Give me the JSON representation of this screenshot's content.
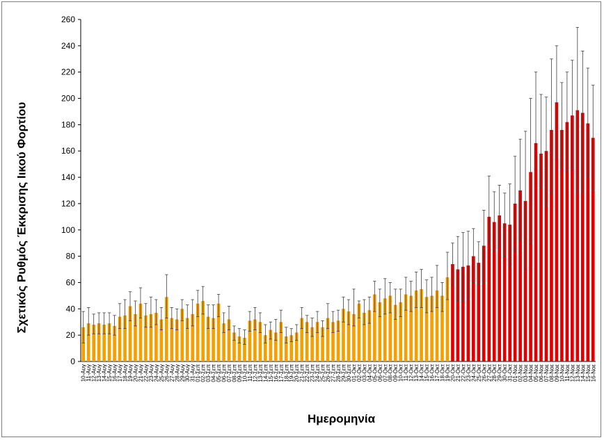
{
  "chart_data": {
    "type": "bar",
    "title": "",
    "xlabel": "Ημερομηνία",
    "ylabel": "Σχετικός Ρυθμός Έκκρισης Ιικού Φορτίου",
    "ylim": [
      0,
      260
    ],
    "yticks": [
      0,
      20,
      40,
      60,
      80,
      100,
      120,
      140,
      160,
      180,
      200,
      220,
      240,
      260
    ],
    "grid": false,
    "colors": {
      "before": "#f5a000",
      "after": "#e00000",
      "error": "#404040"
    },
    "categories": [
      "10-Αυγ",
      "11-Αυγ",
      "12-Αυγ",
      "13-Αυγ",
      "14-Αυγ",
      "15-Αυγ",
      "16-Αυγ",
      "17-Αυγ",
      "18-Αυγ",
      "19-Αυγ",
      "20-Αυγ",
      "21-Αυγ",
      "22-Αυγ",
      "23-Αυγ",
      "24-Αυγ",
      "25-Αυγ",
      "26-Αυγ",
      "27-Αυγ",
      "28-Αυγ",
      "29-Αυγ",
      "30-Αυγ",
      "31-Αυγ",
      "01-Σεπ",
      "02-Σεπ",
      "03-Σεπ",
      "04-Σεπ",
      "05-Σεπ",
      "06-Σεπ",
      "07-Σεπ",
      "08-Σεπ",
      "09-Σεπ",
      "10-Σεπ",
      "11-Σεπ",
      "12-Σεπ",
      "13-Σεπ",
      "14-Σεπ",
      "15-Σεπ",
      "16-Σεπ",
      "17-Σεπ",
      "18-Σεπ",
      "19-Σεπ",
      "20-Σεπ",
      "21-Σεπ",
      "22-Σεπ",
      "23-Σεπ",
      "24-Σεπ",
      "25-Σεπ",
      "26-Σεπ",
      "27-Σεπ",
      "28-Σεπ",
      "29-Σεπ",
      "30-Σεπ",
      "01-Οκτ",
      "02-Οκτ",
      "03-Οκτ",
      "04-Οκτ",
      "05-Οκτ",
      "06-Οκτ",
      "07-Οκτ",
      "08-Οκτ",
      "09-Οκτ",
      "10-Οκτ",
      "11-Οκτ",
      "12-Οκτ",
      "13-Οκτ",
      "14-Οκτ",
      "15-Οκτ",
      "16-Οκτ",
      "17-Οκτ",
      "18-Οκτ",
      "19-Οκτ",
      "20-Οκτ",
      "21-Οκτ",
      "22-Οκτ",
      "23-Οκτ",
      "24-Οκτ",
      "25-Οκτ",
      "26-Οκτ",
      "27-Οκτ",
      "28-Οκτ",
      "29-Οκτ",
      "30-Οκτ",
      "31-Οκτ",
      "01-Νοε",
      "02-Νοε",
      "03-Νοε",
      "04-Νοε",
      "05-Νοε",
      "06-Νοε",
      "07-Νοε",
      "08-Νοε",
      "09-Νοε",
      "10-Νοε",
      "11-Νοε",
      "12-Νοε",
      "13-Νοε",
      "14-Νοε",
      "15-Νοε",
      "16-Νοε"
    ],
    "values": [
      26,
      29,
      28,
      29,
      28,
      29,
      27,
      34,
      35,
      42,
      36,
      44,
      35,
      36,
      37,
      32,
      49,
      33,
      32,
      40,
      33,
      36,
      44,
      46,
      34,
      33,
      44,
      29,
      32,
      22,
      19,
      18,
      31,
      32,
      30,
      20,
      24,
      22,
      30,
      19,
      20,
      22,
      33,
      30,
      26,
      30,
      26,
      33,
      30,
      31,
      40,
      38,
      36,
      44,
      37,
      39,
      51,
      45,
      48,
      50,
      43,
      45,
      51,
      50,
      54,
      55,
      49,
      50,
      54,
      50,
      64,
      74,
      70,
      72,
      73,
      80,
      75,
      88,
      110,
      106,
      111,
      105,
      104,
      120,
      130,
      122,
      144,
      166,
      158,
      160,
      176,
      197,
      176,
      182,
      187,
      191,
      189,
      181,
      170
    ],
    "error_low": [
      12,
      9,
      7,
      8,
      7,
      8,
      7,
      9,
      10,
      11,
      9,
      11,
      9,
      10,
      9,
      8,
      16,
      8,
      8,
      9,
      8,
      9,
      10,
      10,
      9,
      8,
      10,
      7,
      8,
      6,
      5,
      5,
      8,
      8,
      8,
      6,
      7,
      6,
      8,
      5,
      5,
      6,
      8,
      8,
      7,
      8,
      7,
      8,
      8,
      8,
      10,
      10,
      9,
      11,
      9,
      10,
      13,
      11,
      12,
      13,
      11,
      11,
      12,
      12,
      13,
      14,
      12,
      12,
      13,
      12,
      17,
      16,
      24,
      26,
      26,
      20,
      16,
      28,
      20,
      22,
      24,
      25,
      32,
      36,
      38,
      52,
      55,
      20,
      26,
      42,
      48,
      42,
      30,
      38,
      42,
      62,
      60,
      41,
      40
    ],
    "error_high": [
      12,
      12,
      8,
      8,
      9,
      8,
      8,
      10,
      12,
      11,
      10,
      12,
      9,
      13,
      10,
      9,
      17,
      8,
      8,
      7,
      10,
      11,
      10,
      11,
      9,
      10,
      7,
      8,
      10,
      5,
      6,
      6,
      7,
      9,
      7,
      8,
      6,
      10,
      9,
      7,
      5,
      6,
      8,
      5,
      7,
      8,
      5,
      11,
      8,
      8,
      9,
      9,
      19,
      2,
      10,
      10,
      10,
      10,
      15,
      10,
      12,
      10,
      13,
      11,
      14,
      15,
      13,
      14,
      19,
      10,
      19,
      16,
      25,
      26,
      26,
      21,
      16,
      27,
      31,
      23,
      23,
      23,
      31,
      36,
      39,
      53,
      56,
      54,
      45,
      41,
      54,
      43,
      36,
      38,
      42,
      63,
      47,
      42,
      40
    ]
  }
}
